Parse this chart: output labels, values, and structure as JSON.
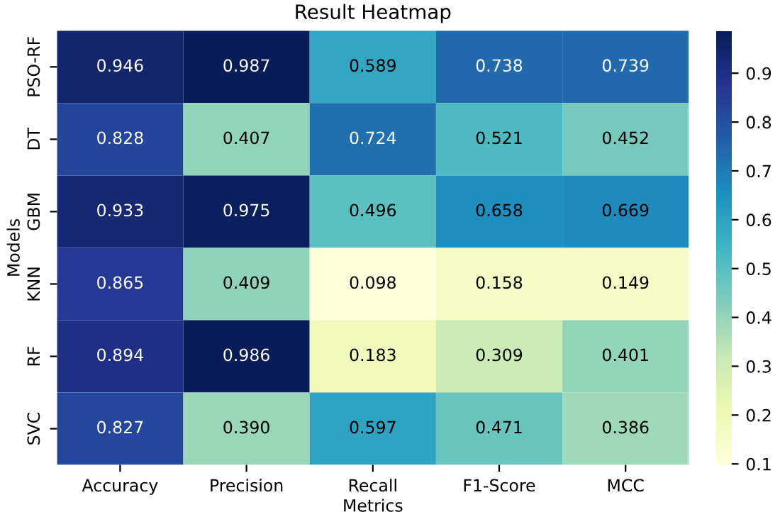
{
  "chart_data": {
    "type": "heatmap",
    "title": "Result Heatmap",
    "xlabel": "Metrics",
    "ylabel": "Models",
    "categories": [
      "Accuracy",
      "Precision",
      "Recall",
      "F1-Score",
      "MCC"
    ],
    "y_categories": [
      "PSO-RF",
      "DT",
      "GBM",
      "KNN",
      "RF",
      "SVC"
    ],
    "cells": [
      [
        0.946,
        0.987,
        0.589,
        0.738,
        0.739
      ],
      [
        0.828,
        0.407,
        0.724,
        0.521,
        0.452
      ],
      [
        0.933,
        0.975,
        0.496,
        0.658,
        0.669
      ],
      [
        0.865,
        0.409,
        0.098,
        0.158,
        0.149
      ],
      [
        0.894,
        0.986,
        0.183,
        0.309,
        0.401
      ],
      [
        0.827,
        0.39,
        0.597,
        0.471,
        0.386
      ]
    ],
    "cell_labels": [
      [
        "0.946",
        "0.987",
        "0.589",
        "0.738",
        "0.739"
      ],
      [
        "0.828",
        "0.407",
        "0.724",
        "0.521",
        "0.452"
      ],
      [
        "0.933",
        "0.975",
        "0.496",
        "0.658",
        "0.669"
      ],
      [
        "0.865",
        "0.409",
        "0.098",
        "0.158",
        "0.149"
      ],
      [
        "0.894",
        "0.986",
        "0.183",
        "0.309",
        "0.401"
      ],
      [
        "0.827",
        "0.390",
        "0.597",
        "0.471",
        "0.386"
      ]
    ],
    "data_labels": true,
    "clim": [
      0.098,
      0.987
    ],
    "cticks": [
      0.1,
      0.2,
      0.3,
      0.4,
      0.5,
      0.6,
      0.7,
      0.8,
      0.9
    ]
  }
}
